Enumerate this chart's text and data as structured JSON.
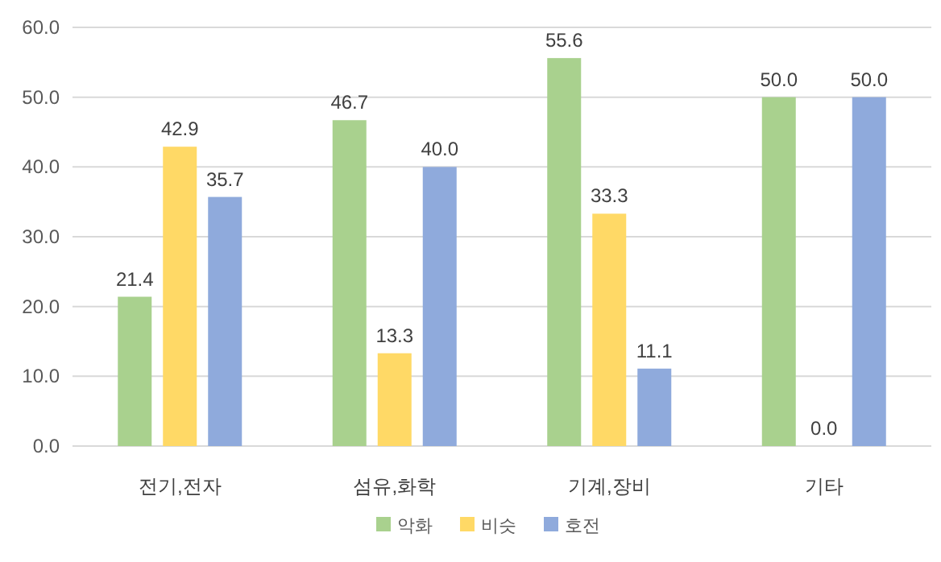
{
  "chart_data": {
    "type": "bar",
    "categories": [
      "전기,전자",
      "섬유,화학",
      "기계,장비",
      "기타"
    ],
    "series": [
      {
        "name": "악화",
        "color": "#a9d18e",
        "values": [
          21.4,
          46.7,
          55.6,
          50.0
        ],
        "value_labels": [
          "21.4",
          "46.7",
          "55.6",
          "50.0"
        ]
      },
      {
        "name": "비슷",
        "color": "#ffd966",
        "values": [
          42.9,
          13.3,
          33.3,
          0.0
        ],
        "value_labels": [
          "42.9",
          "13.3",
          "33.3",
          "0.0"
        ]
      },
      {
        "name": "호전",
        "color": "#8faadc",
        "values": [
          35.7,
          40.0,
          11.1,
          50.0
        ],
        "value_labels": [
          "35.7",
          "40.0",
          "11.1",
          "50.0"
        ]
      }
    ],
    "ylim": [
      0,
      60
    ],
    "yticks": [
      {
        "value": 0,
        "label": "0.0"
      },
      {
        "value": 10,
        "label": "10.0"
      },
      {
        "value": 20,
        "label": "20.0"
      },
      {
        "value": 30,
        "label": "30.0"
      },
      {
        "value": 40,
        "label": "40.0"
      },
      {
        "value": 50,
        "label": "50.0"
      },
      {
        "value": 60,
        "label": "60.0"
      }
    ],
    "grid": "y",
    "legend": "bottom"
  }
}
